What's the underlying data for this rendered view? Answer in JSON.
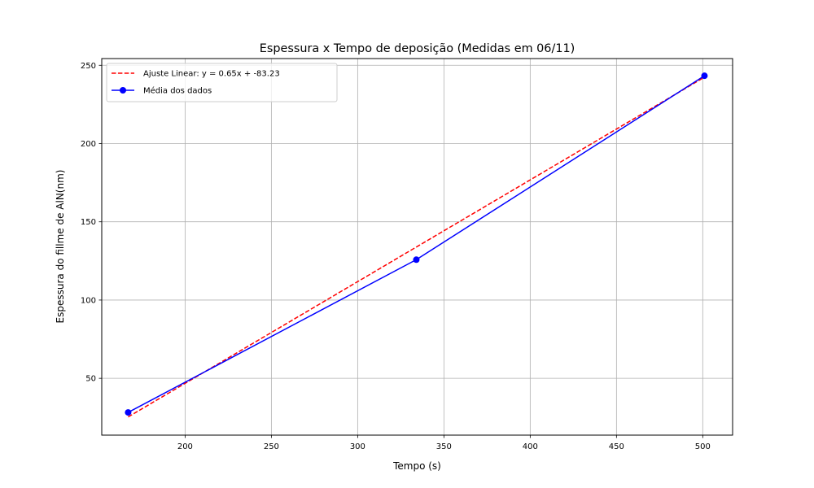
{
  "chart_data": {
    "type": "line",
    "title": "Espessura x Tempo de deposição (Medidas em 06/11)",
    "xlabel": "Tempo (s)",
    "ylabel": "Espessura do fillme de AlN(nm)",
    "xlim": [
      151.7,
      517.3
    ],
    "ylim": [
      13.7,
      254.3
    ],
    "xticks": [
      200,
      250,
      300,
      350,
      400,
      450,
      500
    ],
    "yticks": [
      50,
      100,
      150,
      200,
      250
    ],
    "xtick_labels": [
      "200",
      "250",
      "300",
      "350",
      "400",
      "450",
      "500"
    ],
    "ytick_labels": [
      "50",
      "100",
      "150",
      "200",
      "250"
    ],
    "grid": true,
    "legend_position": "upper-left",
    "series": [
      {
        "name": "Ajuste Linear: y = 0.65x + -83.23",
        "style": "dashed",
        "color": "#ff0000",
        "x": [
          167,
          501
        ],
        "y": [
          25.32,
          242.42
        ]
      },
      {
        "name": "Média dos dados",
        "style": "solid-markers",
        "color": "#0000ff",
        "x": [
          167,
          334,
          501
        ],
        "y": [
          28.2,
          125.8,
          243.3
        ]
      }
    ]
  }
}
